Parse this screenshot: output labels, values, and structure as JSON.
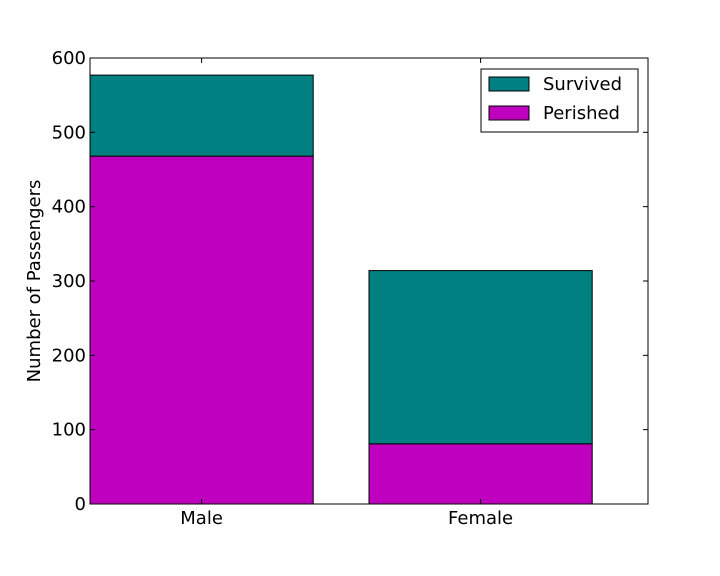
{
  "chart_data": {
    "type": "bar",
    "stacked": true,
    "categories": [
      "Male",
      "Female"
    ],
    "series": [
      {
        "name": "Perished",
        "color": "#bf00bf",
        "values": [
          468,
          81
        ]
      },
      {
        "name": "Survived",
        "color": "#008080",
        "values": [
          109,
          233
        ]
      }
    ],
    "ylabel": "Number of Passengers",
    "xlabel": "",
    "ylim": [
      0,
      600
    ],
    "yticks": [
      0,
      100,
      200,
      300,
      400,
      500,
      600
    ],
    "grid": false,
    "legend": {
      "position": "top-right",
      "entries": [
        "Survived",
        "Perished"
      ]
    }
  }
}
